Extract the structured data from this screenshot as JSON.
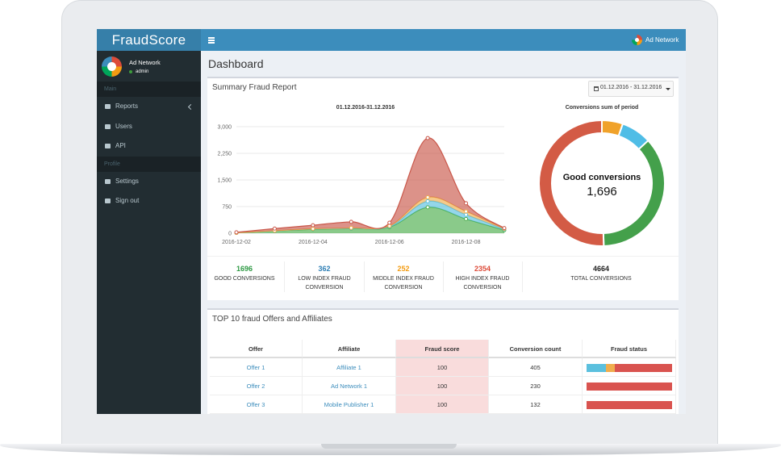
{
  "brand": "FraudScore",
  "header": {
    "user": "Ad Network"
  },
  "sidebar": {
    "user": "Ad Network",
    "status": "admin",
    "sections": [
      {
        "title": "Main",
        "items": [
          "Reports",
          "Users",
          "API"
        ]
      },
      {
        "title": "Profile",
        "items": [
          "Settings",
          "Sign out"
        ]
      }
    ]
  },
  "page_title": "Dashboard",
  "summary": {
    "title": "Summary Fraud Report",
    "date_range": "01.12.2016 - 31.12.2016",
    "stats": [
      {
        "value": 1696,
        "label": "GOOD CONVERSIONS",
        "color": "#2e9a44"
      },
      {
        "value": 362,
        "label": "LOW INDEX FRAUD CONVERSION",
        "color": "#2f7fb5"
      },
      {
        "value": 252,
        "label": "MIDDLE INDEX FRAUD CONVERSION",
        "color": "#f39c12"
      },
      {
        "value": 2354,
        "label": "HIGH INDEX FRAUD CONVERSION",
        "color": "#dd4b39"
      },
      {
        "value": 4664,
        "label": "TOTAL CONVERSIONS",
        "color": "#222222"
      }
    ]
  },
  "chart_data": [
    {
      "type": "area",
      "title": "01.12.2016-31.12.2016",
      "stacked": true,
      "grid": true,
      "x": [
        "2016-12-02",
        "2016-12-03",
        "2016-12-04",
        "2016-12-05",
        "2016-12-06",
        "2016-12-07",
        "2016-12-08",
        "2016-12-09"
      ],
      "xticks": [
        "2016-12-02",
        "2016-12-04",
        "2016-12-06",
        "2016-12-08"
      ],
      "ylim": [
        0,
        3000
      ],
      "yticks": [
        0,
        750,
        {
          "value": 1500,
          "label": "1,500"
        },
        {
          "value": 2250,
          "label": "2,250"
        },
        {
          "value": 3000,
          "label": "3,000"
        }
      ],
      "series": [
        {
          "color": "#4cae4c",
          "values": [
            10,
            60,
            110,
            130,
            170,
            730,
            400,
            86
          ]
        },
        {
          "color": "#5bc0de",
          "values": [
            0,
            5,
            10,
            10,
            20,
            170,
            120,
            27
          ]
        },
        {
          "color": "#f0ad4e",
          "values": [
            0,
            5,
            5,
            10,
            15,
            110,
            95,
            12
          ]
        },
        {
          "color": "#c9574a",
          "values": [
            15,
            60,
            100,
            170,
            90,
            1670,
            230,
            19
          ]
        }
      ]
    },
    {
      "type": "donut",
      "title": "Conversions sum of period",
      "center_label": "Good conversions",
      "center_value": {
        "value": 1696,
        "label": "1,696"
      },
      "series": [
        {
          "color": "#f0a22a",
          "value": 252
        },
        {
          "color": "#4fbde6",
          "value": 362
        },
        {
          "color": "#44a04b",
          "value": 1696
        },
        {
          "color": "#d35b45",
          "value": 2354
        }
      ]
    }
  ],
  "top10": {
    "title": "TOP 10 fraud Offers and Affiliates",
    "columns": [
      "Offer",
      "Affiliate",
      "Fraud score",
      "Conversion count",
      "Fraud status"
    ],
    "rows": [
      {
        "offer": "Offer 1",
        "affiliate": "Affiliate 1",
        "fraud_score": 100,
        "conversion_count": 405,
        "fraud_status": [
          {
            "color": "#5bc0de",
            "value": 23
          },
          {
            "color": "#f0ad4e",
            "value": 10
          },
          {
            "color": "#d9534f",
            "value": 67
          }
        ]
      },
      {
        "offer": "Offer 2",
        "affiliate": "Ad Network 1",
        "fraud_score": 100,
        "conversion_count": 230,
        "fraud_status": [
          {
            "color": "#d9534f",
            "value": 100
          }
        ]
      },
      {
        "offer": "Offer 3",
        "affiliate": "Mobile Publisher 1",
        "fraud_score": 100,
        "conversion_count": 132,
        "fraud_status": [
          {
            "color": "#d9534f",
            "value": 100
          }
        ]
      }
    ]
  }
}
